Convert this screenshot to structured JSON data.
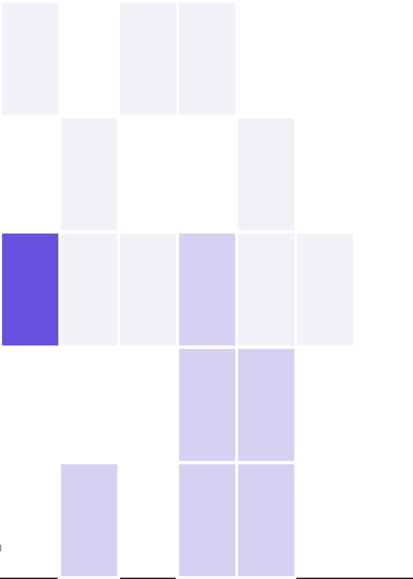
{
  "palette": {
    "inactive": "#f3f1f8",
    "filled": "#d6d1f3",
    "selected": "#6651e0"
  },
  "grid": {
    "columns": 7,
    "rows": 5,
    "cells": [
      [
        "inactive",
        "empty",
        "inactive",
        "inactive",
        "empty",
        "empty",
        "empty"
      ],
      [
        "empty",
        "inactive",
        "empty",
        "empty",
        "inactive",
        "empty",
        "empty"
      ],
      [
        "selected",
        "inactive",
        "inactive",
        "filled",
        "inactive",
        "inactive",
        "empty"
      ],
      [
        "empty",
        "empty",
        "empty",
        "filled",
        "filled",
        "empty",
        "empty"
      ],
      [
        "empty",
        "filled",
        "empty",
        "filled",
        "filled",
        "empty",
        "empty"
      ]
    ]
  }
}
